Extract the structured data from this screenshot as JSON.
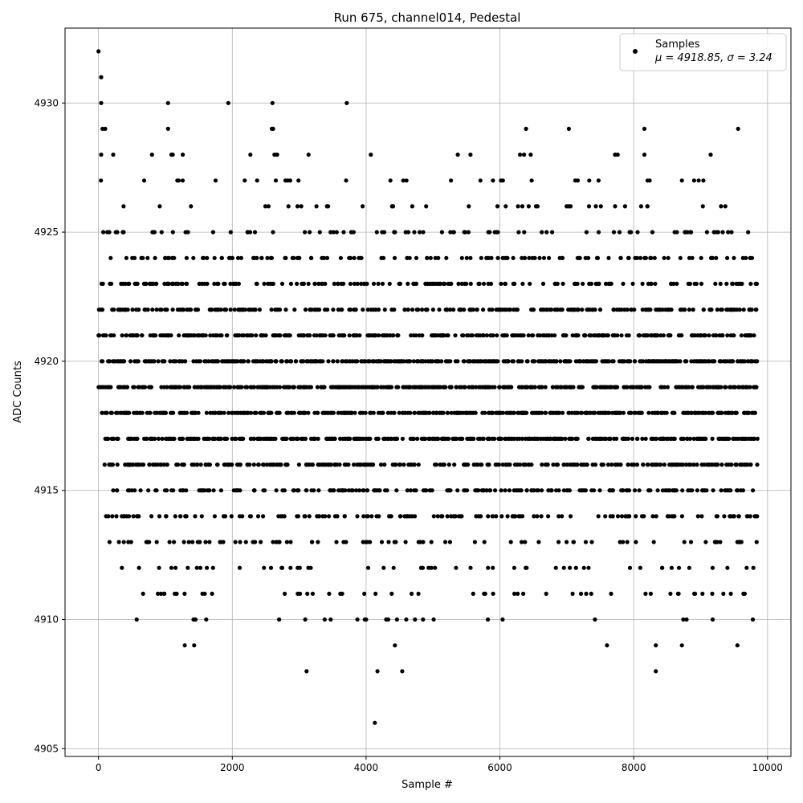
{
  "chart_data": {
    "type": "scatter",
    "title": "Run 675, channel014, Pedestal",
    "xlabel": "Sample #",
    "ylabel": "ADC Counts",
    "xlim": [
      -500,
      10350
    ],
    "ylim": [
      4904.7,
      4932.9
    ],
    "xticks": [
      0,
      2000,
      4000,
      6000,
      8000,
      10000
    ],
    "xtick_labels": [
      "0",
      "2000",
      "4000",
      "6000",
      "8000",
      "10000"
    ],
    "yticks": [
      4905,
      4910,
      4915,
      4920,
      4925,
      4930
    ],
    "ytick_labels": [
      "4905",
      "4910",
      "4915",
      "4920",
      "4925",
      "4930"
    ],
    "grid": true,
    "legend_position": "top-right",
    "marker_color": "#000000",
    "series": [
      {
        "name": "Samples",
        "stats_label": "μ = 4918.85, σ = 3.24",
        "mean": 4918.85,
        "sigma": 3.24,
        "n_samples": 9855,
        "levels": {
          "4918": [
            0,
            9850
          ],
          "4919": [
            0,
            9850
          ],
          "4920": [
            0,
            9850
          ],
          "4921": [
            0,
            9850
          ],
          "4922": [
            0,
            9850
          ],
          "4923": [
            0,
            9850
          ],
          "4917": [
            100,
            9850
          ],
          "4916": [
            30,
            9850
          ],
          "4915": [
            120,
            9850
          ],
          "4924": [
            20,
            9850
          ],
          "4914": [
            60,
            9850
          ],
          "4913": [
            120,
            9850
          ],
          "4925": [
            0,
            9820
          ],
          "4926": [
            0,
            9550
          ],
          "4912": [
            120,
            9850
          ],
          "4911": [
            560,
            9850
          ],
          "4927": [
            0,
            9200
          ]
        },
        "points": [
          [
            0,
            4932
          ],
          [
            40,
            4931
          ],
          [
            40,
            4930
          ],
          [
            1040,
            4930
          ],
          [
            1940,
            4930
          ],
          [
            2600,
            4930
          ],
          [
            3710,
            4930
          ],
          [
            60,
            4929
          ],
          [
            100,
            4929
          ],
          [
            1040,
            4929
          ],
          [
            2590,
            4929
          ],
          [
            2610,
            4929
          ],
          [
            6390,
            4929
          ],
          [
            7030,
            4929
          ],
          [
            8160,
            4929
          ],
          [
            9560,
            4929
          ],
          [
            40,
            4928
          ],
          [
            220,
            4928
          ],
          [
            800,
            4928
          ],
          [
            1090,
            4928
          ],
          [
            1110,
            4928
          ],
          [
            1260,
            4928
          ],
          [
            2270,
            4928
          ],
          [
            2630,
            4928
          ],
          [
            2670,
            4928
          ],
          [
            3140,
            4928
          ],
          [
            4070,
            4928
          ],
          [
            5370,
            4928
          ],
          [
            5560,
            4928
          ],
          [
            6300,
            4928
          ],
          [
            6360,
            4928
          ],
          [
            6460,
            4928
          ],
          [
            7720,
            4928
          ],
          [
            7760,
            4928
          ],
          [
            8160,
            4928
          ],
          [
            9150,
            4928
          ],
          [
            4420,
            4925
          ],
          [
            4690,
            4926
          ],
          [
            570,
            4910
          ],
          [
            1420,
            4910
          ],
          [
            1450,
            4910
          ],
          [
            1610,
            4910
          ],
          [
            2700,
            4910
          ],
          [
            3090,
            4910
          ],
          [
            3380,
            4910
          ],
          [
            3470,
            4910
          ],
          [
            3870,
            4910
          ],
          [
            3980,
            4910
          ],
          [
            4000,
            4910
          ],
          [
            4300,
            4910
          ],
          [
            4330,
            4910
          ],
          [
            4460,
            4910
          ],
          [
            4600,
            4910
          ],
          [
            4730,
            4910
          ],
          [
            4850,
            4910
          ],
          [
            5010,
            4910
          ],
          [
            5820,
            4910
          ],
          [
            6040,
            4910
          ],
          [
            7420,
            4910
          ],
          [
            8740,
            4910
          ],
          [
            8790,
            4910
          ],
          [
            9180,
            4910
          ],
          [
            9780,
            4910
          ],
          [
            1290,
            4909
          ],
          [
            1430,
            4909
          ],
          [
            4430,
            4909
          ],
          [
            7600,
            4909
          ],
          [
            8330,
            4909
          ],
          [
            8720,
            4909
          ],
          [
            9550,
            4909
          ],
          [
            3110,
            4908
          ],
          [
            4170,
            4908
          ],
          [
            4540,
            4908
          ],
          [
            8330,
            4908
          ],
          [
            4130,
            4906
          ]
        ]
      }
    ]
  }
}
